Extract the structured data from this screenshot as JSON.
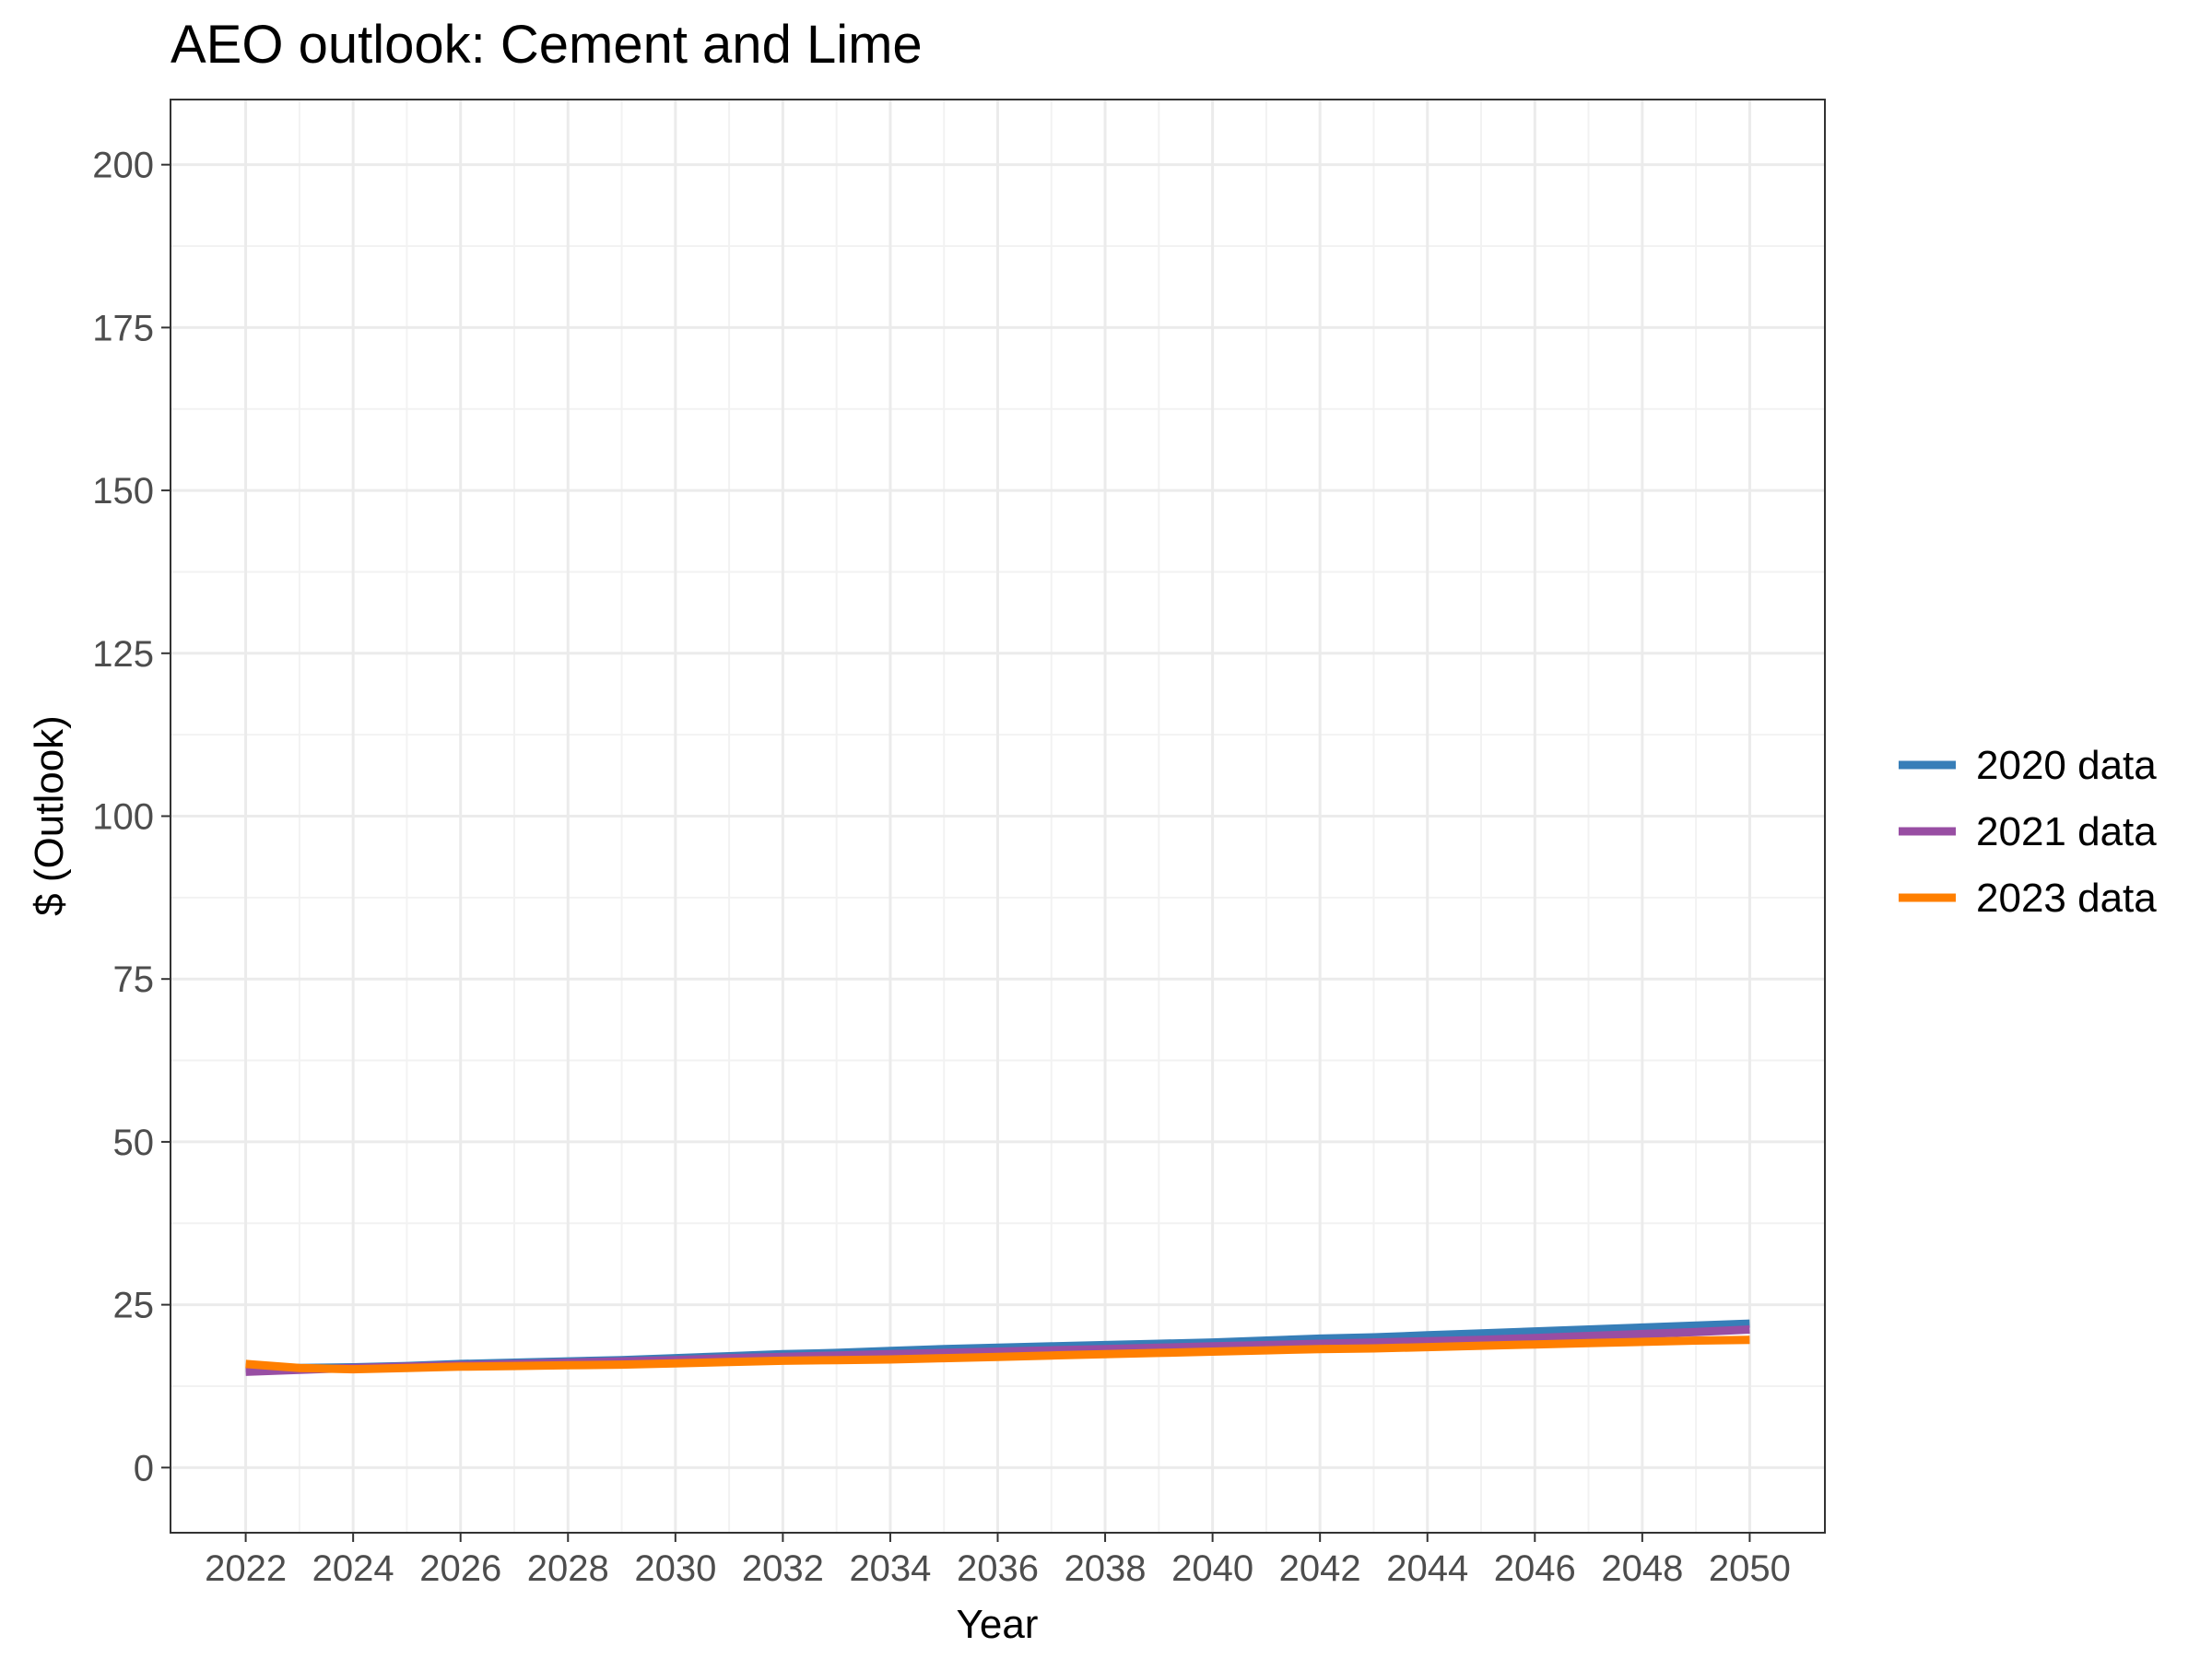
{
  "chart_data": {
    "type": "line",
    "title": "AEO outlook: Cement and Lime",
    "xlabel": "Year",
    "ylabel": "$ (Outlook)",
    "xlim": [
      2020.6,
      2051.4
    ],
    "ylim": [
      -10,
      210
    ],
    "x_ticks": [
      2022,
      2024,
      2026,
      2028,
      2030,
      2032,
      2034,
      2036,
      2038,
      2040,
      2042,
      2044,
      2046,
      2048,
      2050
    ],
    "y_ticks": [
      0,
      25,
      50,
      75,
      100,
      125,
      150,
      175,
      200
    ],
    "grid": true,
    "legend_position": "right",
    "x": [
      2022,
      2023,
      2024,
      2025,
      2026,
      2027,
      2028,
      2029,
      2030,
      2031,
      2032,
      2033,
      2034,
      2035,
      2036,
      2037,
      2038,
      2039,
      2040,
      2041,
      2042,
      2043,
      2044,
      2045,
      2046,
      2047,
      2048,
      2049,
      2050
    ],
    "series": [
      {
        "name": "2020 data",
        "color": "#377eb8",
        "values": [
          15.3,
          15.3,
          15.4,
          15.6,
          15.9,
          16.1,
          16.3,
          16.5,
          16.8,
          17.1,
          17.4,
          17.6,
          17.9,
          18.2,
          18.4,
          18.6,
          18.8,
          19.0,
          19.2,
          19.5,
          19.8,
          20.0,
          20.3,
          20.6,
          20.9,
          21.2,
          21.5,
          21.8,
          22.1
        ]
      },
      {
        "name": "2021 data",
        "color": "#984ea3",
        "values": [
          14.7,
          15.0,
          15.3,
          15.5,
          15.7,
          15.9,
          16.1,
          16.3,
          16.5,
          16.8,
          17.0,
          17.2,
          17.4,
          17.6,
          17.8,
          18.0,
          18.2,
          18.4,
          18.6,
          18.8,
          19.0,
          19.2,
          19.4,
          19.6,
          19.9,
          20.2,
          20.5,
          20.8,
          21.2
        ]
      },
      {
        "name": "2023 data",
        "color": "#ff7f00",
        "values": [
          15.9,
          15.3,
          15.1,
          15.3,
          15.5,
          15.6,
          15.7,
          15.8,
          16.0,
          16.2,
          16.4,
          16.5,
          16.6,
          16.8,
          17.0,
          17.2,
          17.4,
          17.6,
          17.8,
          18.0,
          18.2,
          18.3,
          18.5,
          18.7,
          18.9,
          19.1,
          19.3,
          19.5,
          19.6
        ]
      }
    ]
  }
}
